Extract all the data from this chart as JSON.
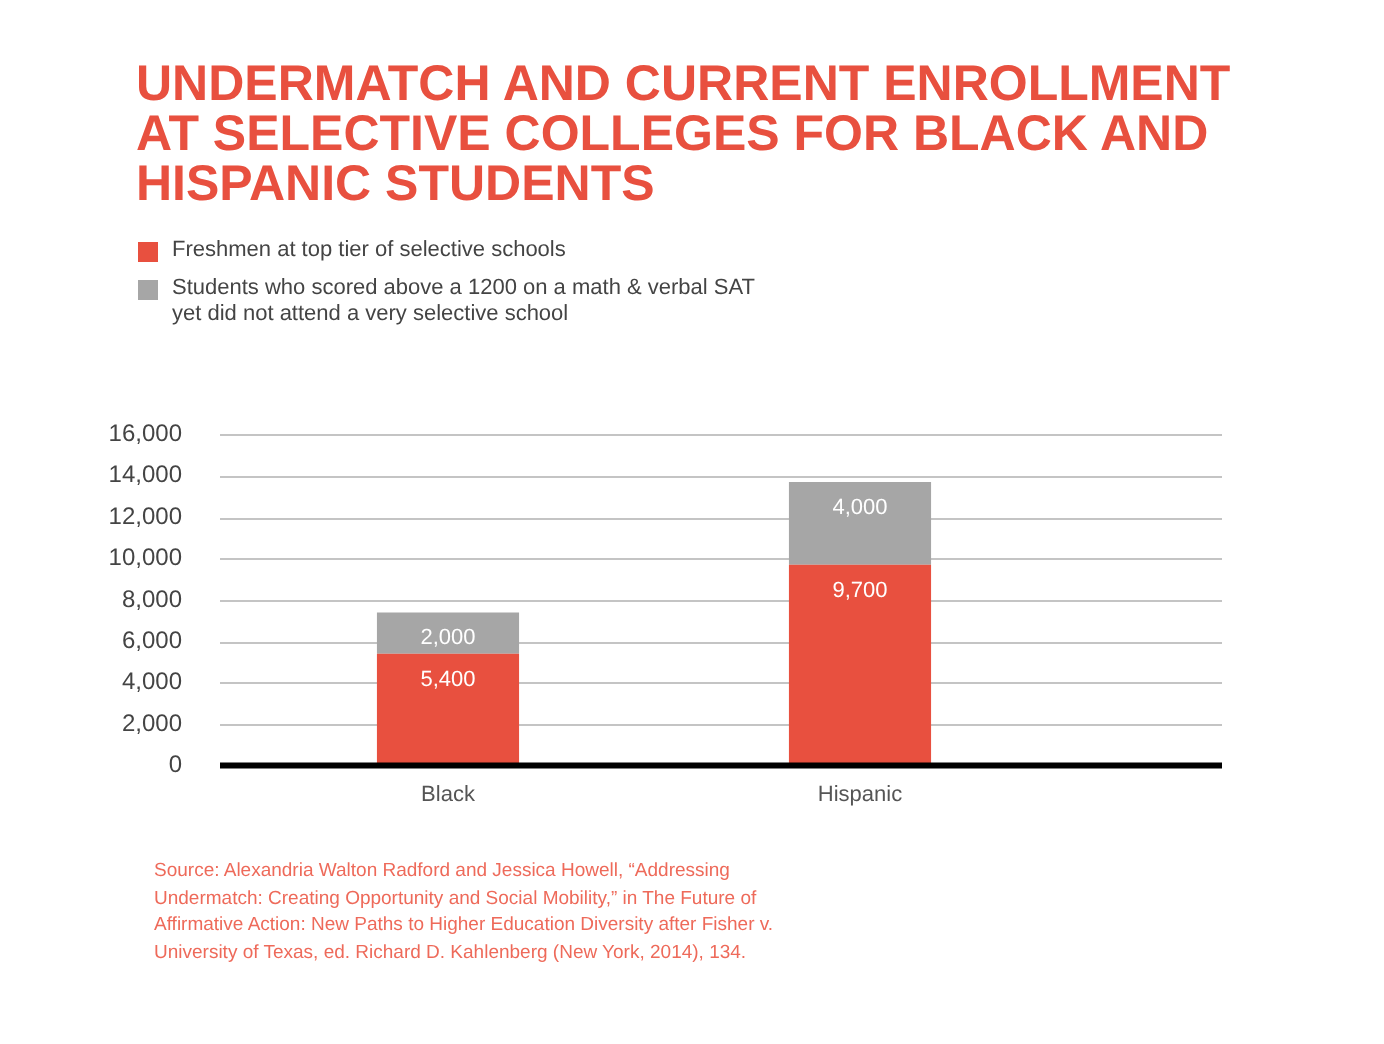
{
  "chart_data": {
    "type": "bar",
    "title": "UNDERMATCH AND CURRENT ENROLLMENT AT SELECTIVE COLLEGES FOR BLACK AND HISPANIC STUDENTS",
    "categories": [
      "Black",
      "Hispanic"
    ],
    "series": [
      {
        "name": "Freshmen at top tier of selective schools",
        "color": "#e8503f",
        "values": [
          5400,
          9700
        ],
        "value_labels": [
          "5,400",
          "9,700"
        ]
      },
      {
        "name": "Students who scored above a 1200 on a math & verbal SAT yet did not attend a very selective school",
        "color": "#a6a6a6",
        "values": [
          2000,
          4000
        ],
        "value_labels": [
          "2,000",
          "4,000"
        ]
      }
    ],
    "stacked": true,
    "ylim": [
      0,
      16000
    ],
    "yticks": [
      0,
      {
        "value": 2000,
        "label": "2,000"
      },
      {
        "value": 4000,
        "label": "4,000"
      },
      {
        "value": 6000,
        "label": "6,000"
      },
      {
        "value": 8000,
        "label": "8,000"
      },
      {
        "value": 10000,
        "label": "10,000"
      },
      {
        "value": 12000,
        "label": "12,000"
      },
      {
        "value": 14000,
        "label": "14,000"
      },
      {
        "value": 16000,
        "label": "16,000"
      }
    ],
    "grid": "y",
    "legend": "top left",
    "annotations": [
      "Source: Alexandria Walton Radford and Jessica Howell, “Addressing Undermatch: Creating Opportunity and Social Mobility,” in The Future of Affirmative Action: New Paths to Higher Education Diversity after Fisher v. University of Texas, ed. Richard D. Kahlenberg (New York, 2014), 134."
    ]
  }
}
